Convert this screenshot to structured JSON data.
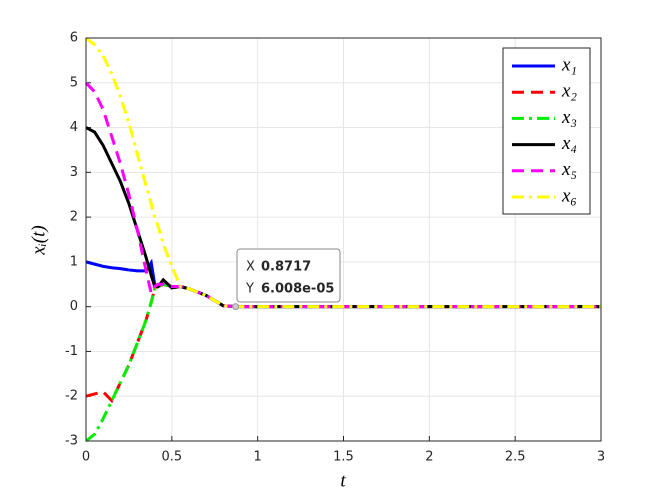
{
  "chart_data": {
    "type": "line",
    "xlabel": "t",
    "ylabel": "xᵢ(t)",
    "x": [
      0,
      0.05,
      0.1,
      0.15,
      0.2,
      0.25,
      0.3,
      0.35,
      0.38,
      0.4,
      0.42,
      0.45,
      0.5,
      0.55,
      0.6,
      0.7,
      0.8,
      0.8717,
      1,
      1.5,
      2,
      2.5,
      3
    ],
    "series": [
      {
        "name": "x₁",
        "color": "#0000ff",
        "style": "solid",
        "values": [
          1,
          0.95,
          0.9,
          0.87,
          0.85,
          0.82,
          0.8,
          0.8,
          0.98,
          0.5,
          0.45,
          0.5,
          0.45,
          0.45,
          0.4,
          0.25,
          0.02,
          6.008e-05,
          0,
          0,
          0,
          0,
          0
        ]
      },
      {
        "name": "x₂",
        "color": "#ff0000",
        "style": "dashed",
        "values": [
          -2,
          -1.95,
          -1.9,
          -2.1,
          -1.7,
          -1.3,
          -0.8,
          -0.3,
          0.1,
          0.4,
          0.45,
          0.5,
          0.45,
          0.45,
          0.4,
          0.25,
          0.02,
          6.008e-05,
          0,
          0,
          0,
          0,
          0
        ]
      },
      {
        "name": "x₃",
        "color": "#00ee00",
        "style": "dashdot",
        "values": [
          -3,
          -2.85,
          -2.5,
          -2.1,
          -1.7,
          -1.3,
          -0.8,
          -0.3,
          0.1,
          0.4,
          0.45,
          0.5,
          0.45,
          0.45,
          0.4,
          0.25,
          0.02,
          6.008e-05,
          0,
          0,
          0,
          0,
          0
        ]
      },
      {
        "name": "x₄",
        "color": "#000000",
        "style": "solid",
        "values": [
          4,
          3.9,
          3.6,
          3.2,
          2.8,
          2.3,
          1.7,
          1.1,
          0.7,
          0.45,
          0.45,
          0.6,
          0.42,
          0.45,
          0.4,
          0.25,
          0.02,
          6.008e-05,
          0,
          0,
          0,
          0,
          0
        ]
      },
      {
        "name": "x₅",
        "color": "#ff00ff",
        "style": "dashed",
        "values": [
          5,
          4.8,
          4.4,
          3.8,
          3.2,
          2.5,
          1.7,
          0.8,
          0.3,
          0.45,
          0.5,
          0.5,
          0.45,
          0.45,
          0.4,
          0.25,
          0.02,
          6.008e-05,
          0,
          0,
          0,
          0,
          0
        ]
      },
      {
        "name": "x₆",
        "color": "#ffff00",
        "style": "dashdot",
        "values": [
          6,
          5.85,
          5.6,
          5.2,
          4.7,
          4.1,
          3.4,
          2.7,
          2.3,
          2.0,
          1.8,
          1.4,
          0.9,
          0.45,
          0.4,
          0.25,
          0.02,
          6.008e-05,
          0,
          0,
          0,
          0,
          0
        ]
      }
    ],
    "xlim": [
      0,
      3
    ],
    "xticks": [
      0,
      0.5,
      1,
      1.5,
      2,
      2.5,
      3
    ],
    "ylim": [
      -3,
      6
    ],
    "yticks": [
      -3,
      -2,
      -1,
      0,
      1,
      2,
      3,
      4,
      5,
      6
    ],
    "grid": true,
    "legend": "top-right",
    "datatip": {
      "x_name": "X",
      "y_name": "Y",
      "x": 0.8717,
      "y": {
        "value": 6.008e-05,
        "label": "6.008e-05"
      }
    }
  }
}
